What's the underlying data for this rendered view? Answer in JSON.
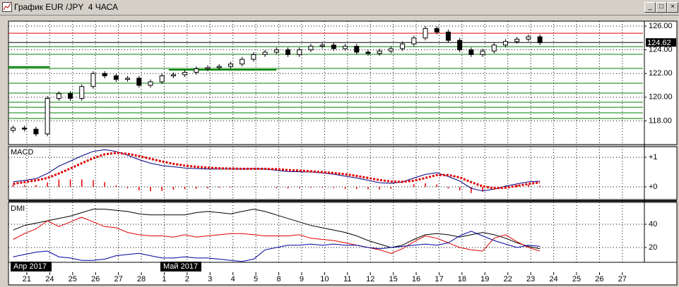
{
  "chart_data": [
    {
      "type": "candlestick",
      "title": "График EUR /JPY  4 ЧАСА",
      "x": [
        -0.6,
        -0.1,
        0.4,
        0.9,
        1.4,
        1.9,
        2.4,
        2.9,
        3.4,
        3.9,
        4.4,
        4.9,
        5.4,
        5.9,
        6.4,
        6.9,
        7.4,
        7.9,
        8.4,
        8.9,
        9.4,
        9.9,
        10.4,
        10.9,
        11.4,
        11.9,
        12.4,
        12.9,
        13.4,
        13.9,
        14.4,
        14.9,
        15.4,
        15.9,
        16.4,
        16.9,
        17.4,
        17.9,
        18.4,
        18.9,
        19.4,
        19.9,
        20.4,
        20.9,
        21.4,
        21.9,
        22.4
      ],
      "open": [
        117.2,
        117.4,
        117.3,
        116.9,
        119.9,
        120.3,
        119.9,
        120.9,
        122.0,
        121.8,
        121.5,
        121.6,
        121.0,
        121.3,
        121.8,
        121.9,
        122.1,
        122.4,
        122.5,
        122.6,
        122.8,
        123.2,
        123.6,
        123.8,
        124.0,
        123.6,
        124.0,
        124.3,
        124.4,
        124.1,
        124.3,
        123.8,
        123.7,
        123.9,
        124.1,
        124.5,
        125.0,
        125.8,
        125.5,
        124.8,
        124.0,
        123.6,
        123.9,
        124.4,
        124.7,
        124.9,
        125.1
      ],
      "high": [
        117.6,
        117.6,
        117.5,
        120.1,
        120.5,
        120.5,
        121.1,
        122.2,
        122.2,
        122.0,
        121.8,
        121.8,
        121.5,
        122.0,
        122.1,
        122.3,
        122.6,
        122.7,
        122.8,
        123.0,
        123.4,
        123.8,
        124.0,
        124.2,
        124.2,
        124.2,
        124.5,
        124.6,
        124.6,
        124.5,
        124.5,
        124.0,
        124.1,
        124.3,
        124.7,
        125.2,
        126.0,
        126.0,
        125.7,
        125.0,
        124.2,
        124.1,
        124.6,
        124.9,
        125.1,
        125.3,
        125.3
      ],
      "low": [
        117.0,
        117.1,
        116.7,
        116.7,
        119.7,
        119.7,
        119.7,
        120.7,
        121.6,
        121.3,
        121.3,
        120.8,
        120.8,
        121.1,
        121.6,
        121.7,
        121.9,
        122.2,
        122.3,
        122.4,
        122.6,
        123.0,
        123.4,
        123.6,
        123.4,
        123.4,
        123.8,
        124.1,
        123.9,
        123.9,
        123.6,
        123.5,
        123.5,
        123.7,
        123.9,
        124.3,
        124.8,
        125.3,
        124.6,
        123.8,
        123.4,
        123.4,
        123.7,
        124.2,
        124.5,
        124.7,
        124.4
      ],
      "close": [
        117.4,
        117.3,
        116.9,
        119.9,
        120.3,
        119.9,
        120.9,
        122.0,
        121.8,
        121.5,
        121.6,
        121.0,
        121.3,
        121.8,
        121.9,
        122.1,
        122.4,
        122.5,
        122.6,
        122.8,
        123.2,
        123.6,
        123.8,
        124.0,
        123.6,
        124.0,
        124.3,
        124.4,
        124.1,
        124.3,
        123.8,
        123.7,
        123.9,
        124.1,
        124.5,
        125.0,
        125.8,
        125.5,
        124.8,
        124.0,
        123.6,
        123.9,
        124.4,
        124.7,
        124.9,
        125.1,
        124.6
      ],
      "color": "#000000",
      "last_price": 124.62,
      "levels": [
        {
          "value": 125.4,
          "color": "#e00000"
        },
        {
          "value": 124.27,
          "color": "#008000"
        },
        {
          "value": 123.62,
          "color": "#008000"
        },
        {
          "value": 122.43,
          "color": "#008000"
        },
        {
          "value": 121.18,
          "color": "#008000"
        },
        {
          "value": 120.35,
          "color": "#008000"
        },
        {
          "value": 119.57,
          "color": "#008000"
        },
        {
          "value": 119.15,
          "color": "#008000"
        },
        {
          "value": 118.68,
          "color": "#008000"
        },
        {
          "value": 118.2,
          "color": "#008000"
        }
      ],
      "segments": [
        {
          "x": [
            -0.8,
            1.0
          ],
          "value": 122.55,
          "color": "#008000"
        },
        {
          "x": [
            6.2,
            10.9
          ],
          "value": 122.31,
          "color": "#008000"
        }
      ],
      "xlim": [
        -0.8,
        26.9
      ],
      "ylim": [
        116,
        126.42
      ],
      "yticks": [
        {
          "value": 118,
          "label": "118.00"
        },
        {
          "value": 120,
          "label": "120.00"
        },
        {
          "value": 122,
          "label": "122.00"
        },
        {
          "value": 124,
          "label": "124.00"
        },
        {
          "value": 126,
          "label": "126.00"
        }
      ],
      "grid": true
    },
    {
      "type": "line",
      "title": "MACD",
      "x": [
        -0.6,
        -0.1,
        0.4,
        0.9,
        1.4,
        1.9,
        2.4,
        2.9,
        3.4,
        3.9,
        4.4,
        4.9,
        5.4,
        5.9,
        6.4,
        6.9,
        7.4,
        7.9,
        8.4,
        8.9,
        9.4,
        9.9,
        10.4,
        10.9,
        11.4,
        11.9,
        12.4,
        12.9,
        13.4,
        13.9,
        14.4,
        14.9,
        15.4,
        15.9,
        16.4,
        16.9,
        17.4,
        17.9,
        18.4,
        18.9,
        19.4,
        19.9,
        20.4,
        20.9,
        21.4,
        21.9,
        22.4
      ],
      "series": [
        {
          "color": "#e00000",
          "style": "histogram",
          "values": [
            0.07,
            0.06,
            0.06,
            0.15,
            0.25,
            0.25,
            0.25,
            0.23,
            0.16,
            0.05,
            -0.05,
            -0.12,
            -0.15,
            -0.14,
            -0.1,
            -0.08,
            -0.06,
            -0.05,
            -0.03,
            -0.02,
            -0.01,
            0.01,
            -0.01,
            -0.04,
            -0.05,
            -0.04,
            -0.03,
            -0.03,
            -0.04,
            -0.07,
            -0.07,
            -0.08,
            -0.09,
            -0.06,
            0,
            0.09,
            0.12,
            0.08,
            -0.05,
            -0.12,
            -0.21,
            -0.16,
            -0.03,
            0.05,
            0.07,
            0.07,
            0.04
          ]
        },
        {
          "color": "#000080",
          "style": "solid",
          "values": [
            0.17,
            0.22,
            0.28,
            0.45,
            0.7,
            0.87,
            1.05,
            1.2,
            1.26,
            1.2,
            1.07,
            0.92,
            0.8,
            0.72,
            0.68,
            0.64,
            0.62,
            0.6,
            0.6,
            0.6,
            0.6,
            0.62,
            0.6,
            0.56,
            0.52,
            0.51,
            0.5,
            0.47,
            0.43,
            0.36,
            0.3,
            0.22,
            0.14,
            0.12,
            0.17,
            0.3,
            0.42,
            0.48,
            0.35,
            0.2,
            -0.05,
            -0.14,
            -0.08,
            0.02,
            0.1,
            0.17,
            0.19
          ]
        },
        {
          "color": "#e00000",
          "style": "dotted",
          "values": [
            0.1,
            0.16,
            0.22,
            0.3,
            0.45,
            0.62,
            0.8,
            0.97,
            1.1,
            1.15,
            1.12,
            1.04,
            0.95,
            0.86,
            0.78,
            0.72,
            0.68,
            0.65,
            0.63,
            0.62,
            0.61,
            0.61,
            0.61,
            0.6,
            0.57,
            0.55,
            0.53,
            0.5,
            0.47,
            0.43,
            0.37,
            0.3,
            0.23,
            0.18,
            0.17,
            0.21,
            0.3,
            0.4,
            0.4,
            0.32,
            0.16,
            0.02,
            -0.05,
            -0.03,
            0.03,
            0.1,
            0.15
          ]
        }
      ],
      "xlim": [
        -0.8,
        26.9
      ],
      "ylim": [
        -0.43,
        1.36
      ],
      "yticks": [
        {
          "value": 0,
          "label": "+0"
        },
        {
          "value": 1,
          "label": "+1"
        }
      ],
      "grid": true
    },
    {
      "type": "line",
      "title": "DMI",
      "x": [
        -0.6,
        -0.1,
        0.4,
        0.9,
        1.4,
        1.9,
        2.4,
        2.9,
        3.4,
        3.9,
        4.4,
        4.9,
        5.4,
        5.9,
        6.4,
        6.9,
        7.4,
        7.9,
        8.4,
        8.9,
        9.4,
        9.9,
        10.4,
        10.9,
        11.4,
        11.9,
        12.4,
        12.9,
        13.4,
        13.9,
        14.4,
        14.9,
        15.4,
        15.9,
        16.4,
        16.9,
        17.4,
        17.9,
        18.4,
        18.9,
        19.4,
        19.9,
        20.4,
        20.9,
        21.4,
        21.9,
        22.4
      ],
      "series": [
        {
          "color": "#000000",
          "style": "solid",
          "values": [
            35,
            39,
            41,
            43,
            45,
            47,
            50,
            53,
            53,
            52,
            51,
            49,
            48,
            48,
            48,
            48,
            50,
            51,
            50,
            49,
            51,
            53,
            51,
            48,
            45,
            42,
            39,
            37,
            35,
            33,
            30,
            26,
            23,
            20,
            22,
            27,
            31,
            32,
            31,
            29,
            31,
            33,
            31,
            28,
            24,
            21,
            19
          ]
        },
        {
          "color": "#e00000",
          "style": "solid",
          "values": [
            27,
            32,
            36,
            43,
            38,
            42,
            46,
            42,
            38,
            37,
            33,
            31,
            30,
            30,
            29,
            31,
            29,
            30,
            31,
            32,
            32,
            31,
            30,
            30,
            30,
            31,
            28,
            27,
            26,
            24,
            22,
            20,
            18,
            15,
            19,
            25,
            30,
            28,
            24,
            20,
            18,
            17,
            28,
            31,
            25,
            20,
            17
          ]
        },
        {
          "color": "#0000a0",
          "style": "solid",
          "values": [
            12,
            14,
            16,
            17,
            12,
            11,
            9,
            9,
            10,
            13,
            14,
            15,
            13,
            11,
            11,
            12,
            11,
            11,
            10,
            9,
            8,
            10,
            18,
            20,
            22,
            22,
            23,
            22,
            23,
            22,
            22,
            20,
            19,
            20,
            21,
            22,
            23,
            22,
            24,
            30,
            34,
            30,
            26,
            23,
            20,
            22,
            21
          ]
        }
      ],
      "xlim": [
        -0.8,
        26.9
      ],
      "ylim": [
        7.3,
        58.8
      ],
      "yticks": [
        20,
        40
      ],
      "xticks": [
        {
          "value": 0,
          "label": "21"
        },
        {
          "value": 1,
          "label": "24"
        },
        {
          "value": 2,
          "label": "25"
        },
        {
          "value": 3,
          "label": "26"
        },
        {
          "value": 4,
          "label": "27"
        },
        {
          "value": 5,
          "label": "28"
        },
        {
          "value": 6,
          "label": "1"
        },
        {
          "value": 7,
          "label": "2"
        },
        {
          "value": 8,
          "label": "3"
        },
        {
          "value": 9,
          "label": "4"
        },
        {
          "value": 10,
          "label": "5"
        },
        {
          "value": 11,
          "label": "8"
        },
        {
          "value": 12,
          "label": "9"
        },
        {
          "value": 13,
          "label": "10"
        },
        {
          "value": 14,
          "label": "11"
        },
        {
          "value": 15,
          "label": "12"
        },
        {
          "value": 16,
          "label": "15"
        },
        {
          "value": 17,
          "label": "16"
        },
        {
          "value": 18,
          "label": "17"
        },
        {
          "value": 19,
          "label": "18"
        },
        {
          "value": 20,
          "label": "19"
        },
        {
          "value": 21,
          "label": "22"
        },
        {
          "value": 22,
          "label": "23"
        },
        {
          "value": 23,
          "label": "24"
        },
        {
          "value": 24,
          "label": "25"
        },
        {
          "value": 25,
          "label": "26"
        },
        {
          "value": 26,
          "label": "27"
        }
      ],
      "months": [
        "Апр 2017",
        "Май 2017"
      ],
      "grid": true
    }
  ]
}
